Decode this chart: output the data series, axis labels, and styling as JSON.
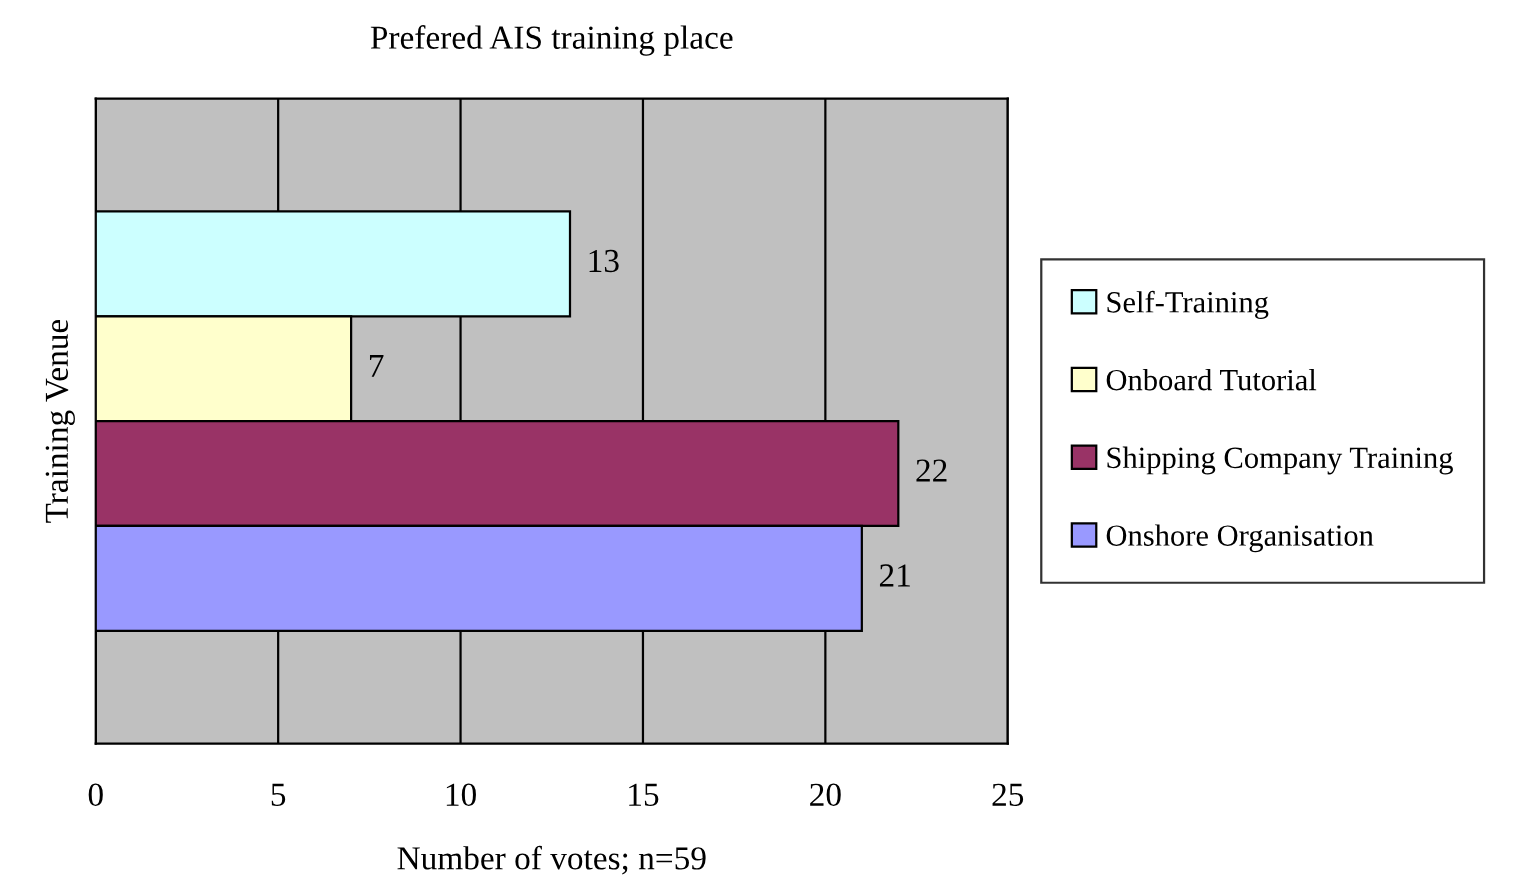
{
  "chart_data": {
    "type": "bar",
    "orientation": "horizontal",
    "title": "Prefered AIS training place",
    "xlabel": "Number of votes; n=59",
    "ylabel": "Training Venue",
    "categories": [
      null
    ],
    "series": [
      {
        "name": "Self-Training",
        "color": "#ccffff",
        "values": [
          13
        ]
      },
      {
        "name": "Onboard Tutorial",
        "color": "#ffffcc",
        "values": [
          7
        ]
      },
      {
        "name": "Shipping Company Training",
        "color": "#993366",
        "values": [
          22
        ]
      },
      {
        "name": "Onshore Organisation",
        "color": "#9999ff",
        "values": [
          21
        ]
      }
    ],
    "xlim": [
      0,
      25
    ],
    "xticks": [
      0,
      5,
      10,
      15,
      20,
      25
    ],
    "grid": "x",
    "legend": "right",
    "data_labels": true
  }
}
